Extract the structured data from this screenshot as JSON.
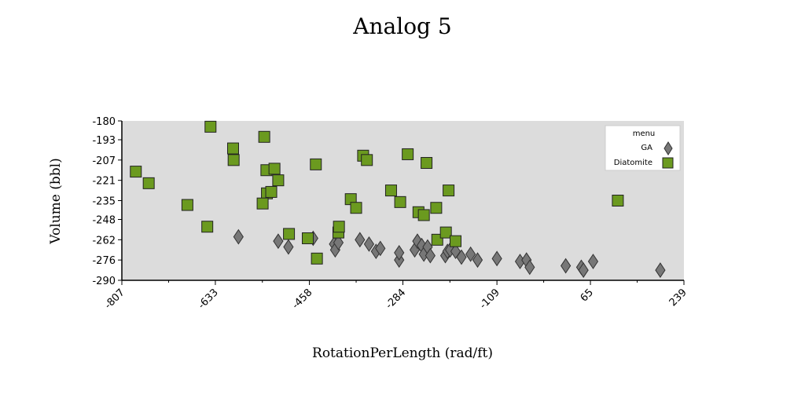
{
  "chart_data": {
    "type": "scatter",
    "title": "Analog 5",
    "xlabel": "RotationPerLength (rad/ft)",
    "ylabel": "Volume (bbl)",
    "xlim": [
      -807,
      239
    ],
    "ylim": [
      -290,
      -180
    ],
    "x_ticks": [
      "-807",
      "-633",
      "-458",
      "-284",
      "-109",
      "65",
      "239"
    ],
    "y_ticks": [
      "-180",
      "-193",
      "-207",
      "-221",
      "-235",
      "-248",
      "-262",
      "-276",
      "-290"
    ],
    "grid": false,
    "plot_background": "#dcdcdc",
    "legend": {
      "title": "menu",
      "position": "top-right"
    },
    "series": [
      {
        "name": "GA",
        "marker": "diamond",
        "color": "#777777",
        "points": [
          [
            -590,
            -260
          ],
          [
            -516,
            -263
          ],
          [
            -497,
            -267
          ],
          [
            -451,
            -261
          ],
          [
            -412,
            -265
          ],
          [
            -410,
            -269
          ],
          [
            -404,
            -264
          ],
          [
            -364,
            -262
          ],
          [
            -347,
            -265
          ],
          [
            -334,
            -270
          ],
          [
            -326,
            -268
          ],
          [
            -291,
            -276
          ],
          [
            -291,
            -271
          ],
          [
            -262,
            -269
          ],
          [
            -257,
            -263
          ],
          [
            -249,
            -266
          ],
          [
            -245,
            -272
          ],
          [
            -238,
            -267
          ],
          [
            -233,
            -273
          ],
          [
            -205,
            -273
          ],
          [
            -201,
            -270
          ],
          [
            -196,
            -269
          ],
          [
            -186,
            -270
          ],
          [
            -175,
            -274
          ],
          [
            -158,
            -272
          ],
          [
            -145,
            -276
          ],
          [
            -109,
            -275
          ],
          [
            -66,
            -277
          ],
          [
            -54,
            -276
          ],
          [
            -48,
            -281
          ],
          [
            19,
            -280
          ],
          [
            48,
            -281
          ],
          [
            52,
            -283
          ],
          [
            70,
            -277
          ],
          [
            195,
            -283
          ]
        ]
      },
      {
        "name": "Diatomite",
        "marker": "square",
        "color": "#6b9a1f",
        "points": [
          [
            -781,
            -215
          ],
          [
            -757,
            -223
          ],
          [
            -685,
            -238
          ],
          [
            -648,
            -253
          ],
          [
            -642,
            -184
          ],
          [
            -600,
            -199
          ],
          [
            -599,
            -207
          ],
          [
            -542,
            -191
          ],
          [
            -538,
            -214
          ],
          [
            -537,
            -230
          ],
          [
            -529,
            -229
          ],
          [
            -523,
            -213
          ],
          [
            -516,
            -221
          ],
          [
            -545,
            -237
          ],
          [
            -496,
            -258
          ],
          [
            -461,
            -261
          ],
          [
            -446,
            -210
          ],
          [
            -444,
            -275
          ],
          [
            -404,
            -257
          ],
          [
            -403,
            -253
          ],
          [
            -381,
            -234
          ],
          [
            -371,
            -240
          ],
          [
            -358,
            -204
          ],
          [
            -351,
            -207
          ],
          [
            -306,
            -228
          ],
          [
            -289,
            -236
          ],
          [
            -275,
            -203
          ],
          [
            -255,
            -243
          ],
          [
            -245,
            -245
          ],
          [
            -240,
            -209
          ],
          [
            -222,
            -240
          ],
          [
            -220,
            -262
          ],
          [
            -204,
            -257
          ],
          [
            -199,
            -228
          ],
          [
            -186,
            -263
          ],
          [
            116,
            -235
          ]
        ]
      }
    ]
  }
}
